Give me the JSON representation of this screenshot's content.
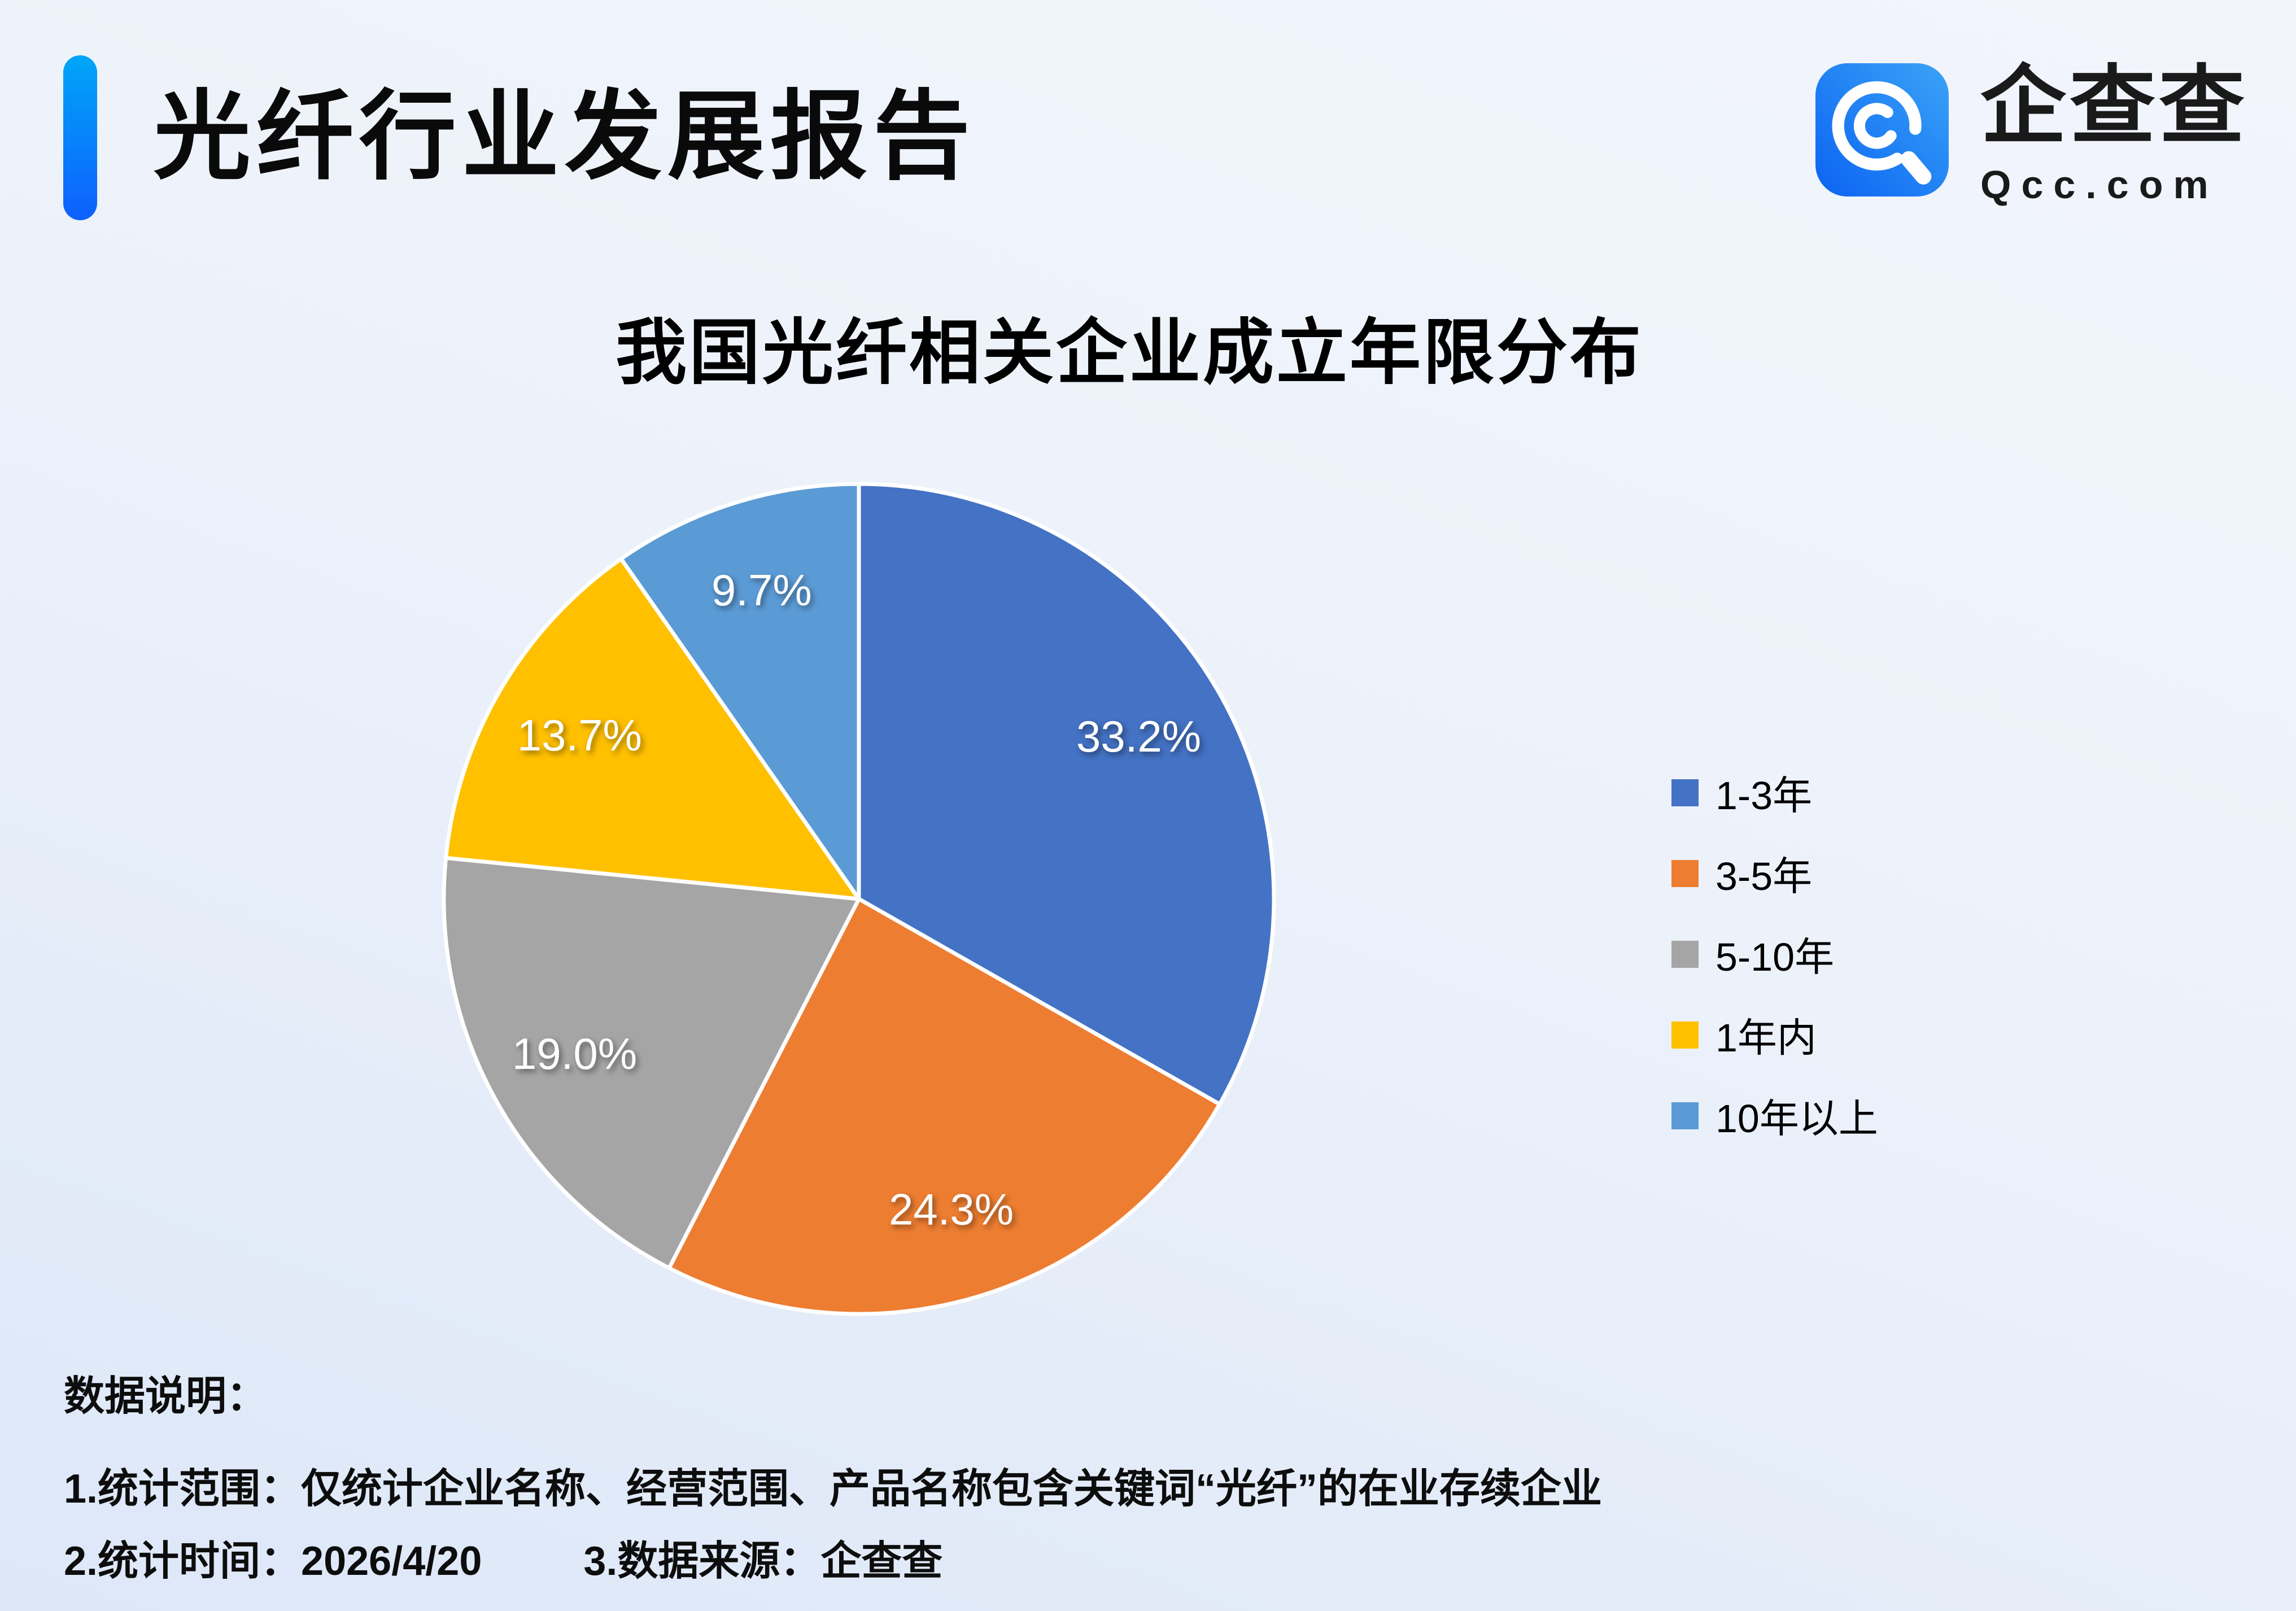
{
  "header": {
    "title": "光纤行业发展报告",
    "accent_color_top": "#00A6F8",
    "accent_color_bottom": "#0E60FD"
  },
  "logo": {
    "name": "企查查",
    "domain": "Qcc.com",
    "brand_color": "#1877F2"
  },
  "chart_data": {
    "type": "pie",
    "title": "我国光纤相关企业成立年限分布",
    "series": [
      {
        "label": "1-3年",
        "value": 33.2,
        "color": "#4472C4"
      },
      {
        "label": "3-5年",
        "value": 24.3,
        "color": "#ED7D31"
      },
      {
        "label": "5-10年",
        "value": 19.0,
        "color": "#A5A5A5"
      },
      {
        "label": "1年内",
        "value": 13.7,
        "color": "#FFC000"
      },
      {
        "label": "10年以上",
        "value": 9.7,
        "color": "#5B9BD5"
      }
    ],
    "label_format": "percent",
    "label_color": "#FFFFFF",
    "legend_position": "right",
    "start_angle_deg": 0,
    "direction": "clockwise",
    "slice_border_color": "#FFFFFF"
  },
  "notes": {
    "heading": "数据说明：",
    "line1": "1.统计范围：仅统计企业名称、经营范围、产品名称包含关键词“光纤”的在业存续企业",
    "line2_items": [
      "2.统计时间：2026/4/20",
      "3.数据来源：企查查"
    ]
  }
}
